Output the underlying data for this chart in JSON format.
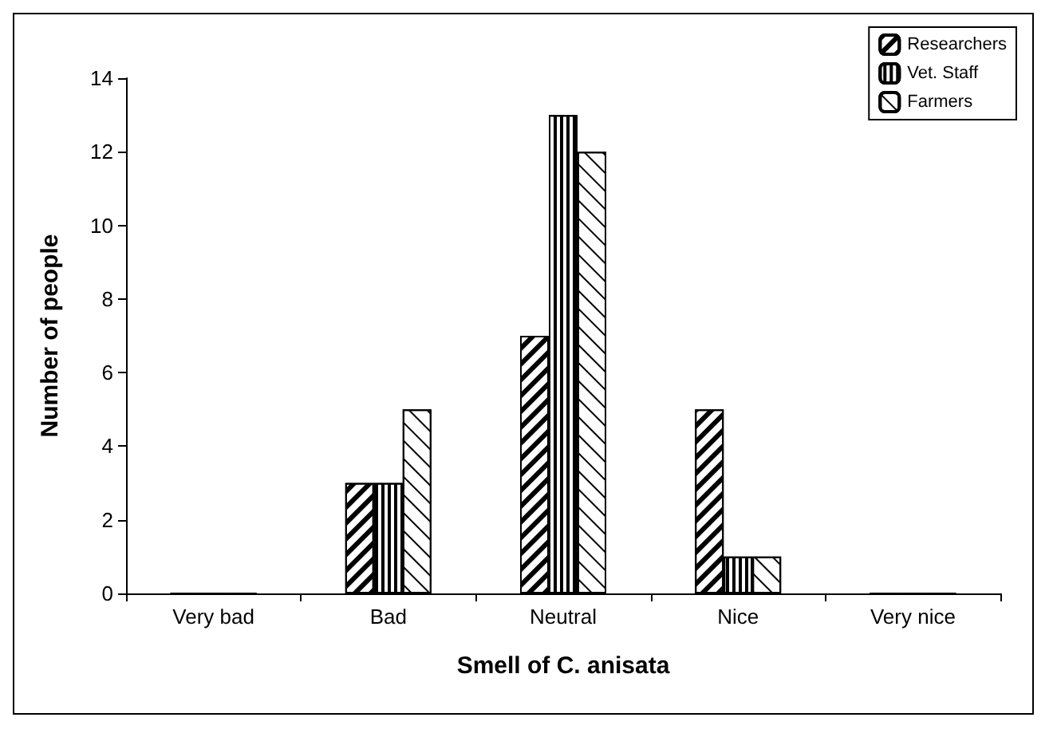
{
  "chart_data": {
    "type": "bar",
    "xlabel": "Smell of C. anisata",
    "ylabel": "Number of people",
    "categories": [
      "Very bad",
      "Bad",
      "Neutral",
      "Nice",
      "Very nice"
    ],
    "series": [
      {
        "name": "Researchers",
        "color": "#000000",
        "values": [
          0,
          3,
          7,
          5,
          0
        ]
      },
      {
        "name": "Vet. Staff",
        "color": "#000000",
        "values": [
          0,
          3,
          13,
          1,
          0
        ]
      },
      {
        "name": "Farmers",
        "color": "#000000",
        "values": [
          0,
          5,
          12,
          1,
          0
        ]
      }
    ],
    "ylim": [
      0,
      14
    ],
    "yticks": [
      0,
      2,
      4,
      6,
      8,
      10,
      12,
      14
    ],
    "grid": false,
    "legend": "top right"
  }
}
